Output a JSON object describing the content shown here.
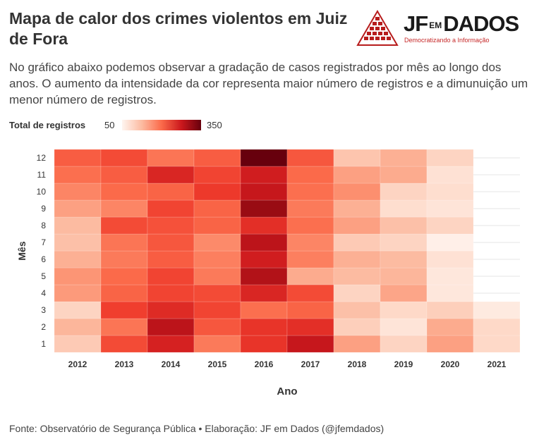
{
  "header": {
    "title": "Mapa de calor dos crimes violentos em Juiz de Fora",
    "subtitle": "No gráfico abaixo podemos observar a gradação de casos registrados por mês ao longo dos anos. O aumento da intensidade da cor representa maior número de registros e a dimunuição um menor número de registros."
  },
  "logo": {
    "brand_prefix": "JF",
    "brand_middle": "EM",
    "brand_suffix": "DADOS",
    "tagline": "Democratizando a Informação"
  },
  "legend": {
    "title": "Total de registros",
    "min_label": "50",
    "max_label": "350"
  },
  "footer": {
    "source": "Fonte: Observatório de Segurança Pública • Elaboração: JF em Dados (@jfemdados)"
  },
  "colors": {
    "scale": [
      "#fff5f0",
      "#fee0d2",
      "#fcbba1",
      "#fc9272",
      "#fb6a4a",
      "#ef3b2c",
      "#cb181d",
      "#a50f15",
      "#67000d"
    ],
    "text": "#333333",
    "accent": "#c62828"
  },
  "chart_data": {
    "type": "heatmap",
    "xlabel": "Ano",
    "ylabel": "Mês",
    "x": [
      "2012",
      "2013",
      "2014",
      "2015",
      "2016",
      "2017",
      "2018",
      "2019",
      "2020",
      "2021"
    ],
    "y": [
      "1",
      "2",
      "3",
      "4",
      "5",
      "6",
      "7",
      "8",
      "9",
      "10",
      "11",
      "12"
    ],
    "value_range": [
      50,
      350
    ],
    "values": [
      [
        110,
        225,
        265,
        185,
        245,
        280,
        150,
        100,
        150,
        95
      ],
      [
        130,
        190,
        290,
        215,
        245,
        250,
        105,
        80,
        140,
        95
      ],
      [
        100,
        235,
        255,
        230,
        195,
        205,
        120,
        95,
        105,
        70
      ],
      [
        155,
        205,
        230,
        225,
        260,
        225,
        100,
        145,
        75,
        null
      ],
      [
        160,
        200,
        230,
        185,
        300,
        140,
        125,
        130,
        75,
        null
      ],
      [
        135,
        185,
        210,
        180,
        270,
        180,
        135,
        125,
        85,
        null
      ],
      [
        120,
        190,
        215,
        170,
        290,
        175,
        110,
        100,
        60,
        null
      ],
      [
        125,
        225,
        220,
        205,
        250,
        195,
        150,
        120,
        100,
        null
      ],
      [
        150,
        175,
        230,
        205,
        320,
        185,
        135,
        90,
        80,
        null
      ],
      [
        175,
        200,
        205,
        240,
        280,
        195,
        165,
        100,
        90,
        null
      ],
      [
        195,
        210,
        260,
        230,
        270,
        200,
        150,
        140,
        85,
        null
      ],
      [
        210,
        225,
        190,
        210,
        350,
        215,
        115,
        135,
        100,
        null
      ]
    ]
  }
}
